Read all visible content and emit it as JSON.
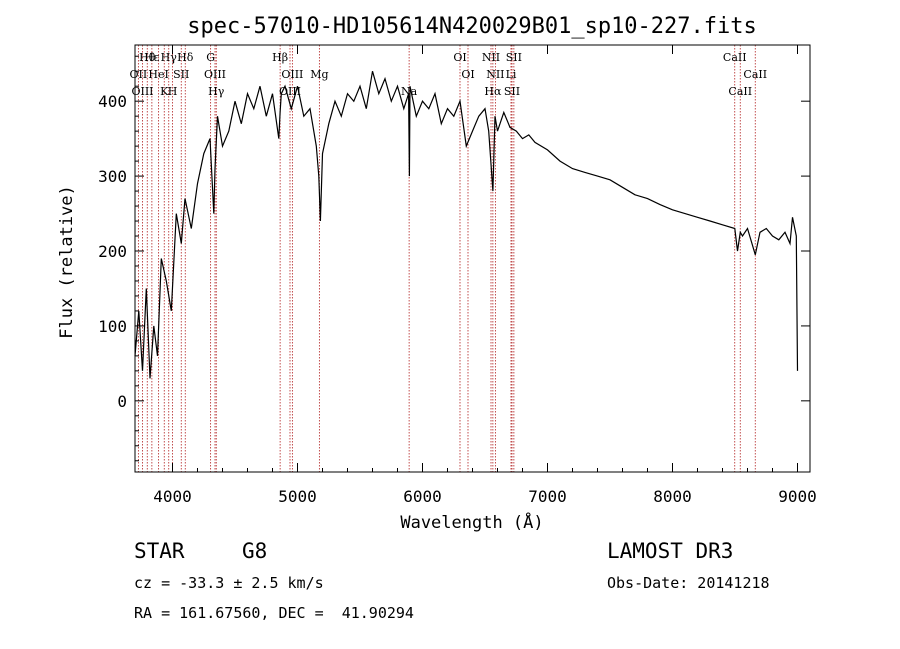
{
  "chart_data": {
    "type": "line",
    "title": "spec-57010-HD105614N420029B01_sp10-227.fits",
    "xlabel": "Wavelength (Å)",
    "ylabel": "Flux (relative)",
    "xlim": [
      3700,
      9100
    ],
    "ylim": [
      -95,
      475
    ],
    "xticks": [
      4000,
      5000,
      6000,
      7000,
      8000,
      9000
    ],
    "yticks": [
      0,
      100,
      200,
      300,
      400
    ],
    "spectrum": {
      "name": "flux",
      "x": [
        3700,
        3730,
        3760,
        3790,
        3820,
        3850,
        3880,
        3910,
        3950,
        3990,
        4030,
        4070,
        4100,
        4150,
        4200,
        4250,
        4300,
        4330,
        4340,
        4360,
        4400,
        4450,
        4500,
        4550,
        4600,
        4650,
        4700,
        4750,
        4800,
        4850,
        4861,
        4870,
        4900,
        4950,
        5000,
        5050,
        5100,
        5150,
        5170,
        5183,
        5200,
        5250,
        5300,
        5350,
        5400,
        5450,
        5500,
        5550,
        5600,
        5650,
        5700,
        5750,
        5800,
        5850,
        5889,
        5895,
        5900,
        5950,
        6000,
        6050,
        6100,
        6150,
        6200,
        6250,
        6300,
        6350,
        6400,
        6450,
        6500,
        6530,
        6563,
        6580,
        6600,
        6650,
        6700,
        6750,
        6800,
        6850,
        6900,
        7000,
        7100,
        7200,
        7300,
        7400,
        7500,
        7600,
        7700,
        7800,
        7900,
        8000,
        8100,
        8200,
        8300,
        8400,
        8498,
        8520,
        8542,
        8560,
        8600,
        8662,
        8700,
        8750,
        8800,
        8850,
        8900,
        8940,
        8960,
        8990,
        9000
      ],
      "y": [
        60,
        120,
        40,
        150,
        30,
        100,
        60,
        190,
        160,
        120,
        250,
        210,
        270,
        230,
        290,
        330,
        350,
        250,
        310,
        380,
        340,
        360,
        400,
        370,
        410,
        390,
        420,
        380,
        410,
        350,
        385,
        410,
        420,
        390,
        420,
        380,
        390,
        340,
        300,
        240,
        330,
        370,
        400,
        380,
        410,
        400,
        420,
        390,
        440,
        410,
        430,
        400,
        420,
        390,
        410,
        300,
        420,
        380,
        400,
        390,
        410,
        370,
        390,
        380,
        400,
        340,
        360,
        380,
        390,
        360,
        280,
        380,
        360,
        385,
        365,
        360,
        350,
        355,
        345,
        335,
        320,
        310,
        305,
        300,
        295,
        285,
        275,
        270,
        262,
        255,
        250,
        245,
        240,
        235,
        230,
        200,
        225,
        220,
        230,
        195,
        225,
        230,
        220,
        215,
        225,
        210,
        245,
        220,
        40
      ]
    },
    "emission_lines": [
      {
        "label": "Hθ",
        "wavelength": 3798
      },
      {
        "label": "OII",
        "wavelength": 3727
      },
      {
        "label": "OIII",
        "wavelength": 3760
      },
      {
        "label": "Hε",
        "wavelength": 3835
      },
      {
        "label": "HeI",
        "wavelength": 3889
      },
      {
        "label": "K",
        "wavelength": 3934
      },
      {
        "label": "Hγ",
        "wavelength": 3970
      },
      {
        "label": "SII",
        "wavelength": 4070
      },
      {
        "label": "H",
        "wavelength": 4000
      },
      {
        "label": "Hδ",
        "wavelength": 4102
      },
      {
        "label": "OIII",
        "wavelength": 4340
      },
      {
        "label": "Hγ",
        "wavelength": 4350
      },
      {
        "label": "G",
        "wavelength": 4305
      },
      {
        "label": "OIII",
        "wavelength": 4959
      },
      {
        "label": "OIII",
        "wavelength": 4940
      },
      {
        "label": "Hβ",
        "wavelength": 4861
      },
      {
        "label": "Mg",
        "wavelength": 5175
      },
      {
        "label": "Na",
        "wavelength": 5893
      },
      {
        "label": "OI",
        "wavelength": 6300
      },
      {
        "label": "OI",
        "wavelength": 6364
      },
      {
        "label": "Hα",
        "wavelength": 6563
      },
      {
        "label": "NII",
        "wavelength": 6548
      },
      {
        "label": "NII",
        "wavelength": 6583
      },
      {
        "label": "SII",
        "wavelength": 6716
      },
      {
        "label": "SII",
        "wavelength": 6731
      },
      {
        "label": "Li",
        "wavelength": 6708
      },
      {
        "label": "CaII",
        "wavelength": 8542
      },
      {
        "label": "CaII",
        "wavelength": 8498
      },
      {
        "label": "CaII",
        "wavelength": 8662
      }
    ]
  },
  "info": {
    "object_class": "STAR",
    "subclass": "G8",
    "survey": "LAMOST DR3",
    "redshift": "cz = -33.3 ± 2.5 km/s",
    "obs_date": "Obs-Date: 20141218",
    "coords": "RA = 161.67560, DEC =  41.90294"
  },
  "colors": {
    "axis": "#000000",
    "spectrum": "#000000",
    "marker_line": "#b22222"
  }
}
